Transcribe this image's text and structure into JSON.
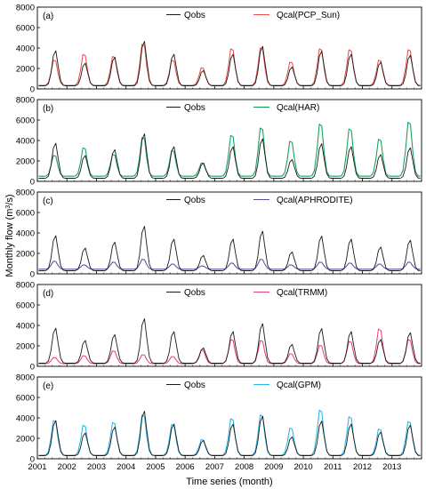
{
  "figure": {
    "xlabel": "Time series (month)",
    "ylabel_text": "Monthly flow (m",
    "ylabel_sup": "3",
    "ylabel_tail": "/s)",
    "x_years": [
      "2001",
      "2002",
      "2003",
      "2004",
      "2005",
      "2006",
      "2007",
      "2008",
      "2009",
      "2010",
      "2011",
      "2012",
      "2013"
    ],
    "y_ticks": [
      "0",
      "2000",
      "4000",
      "6000",
      "8000"
    ]
  },
  "chart_data": [
    {
      "type": "line",
      "panel": "(a)",
      "xlabel": "Time series (month)",
      "ylabel": "Monthly flow (m3/s)",
      "ylim": [
        0,
        8000
      ],
      "xlim": [
        "2001-01",
        "2014-01"
      ],
      "peaks": {
        "years": [
          2001,
          2002,
          2003,
          2004,
          2005,
          2006,
          2007,
          2008,
          2009,
          2010,
          2011,
          2012,
          2013
        ],
        "Qobs": [
          3850,
          2600,
          3200,
          4800,
          3500,
          1850,
          3500,
          4300,
          2200,
          3800,
          3500,
          2700,
          3400
        ],
        "Qcal": [
          3000,
          3600,
          3400,
          4700,
          3000,
          2200,
          4200,
          4300,
          2800,
          4200,
          4100,
          3000,
          4100
        ]
      },
      "series": [
        {
          "name": "Qobs",
          "color": "#1a1a1a",
          "base": 300
        },
        {
          "name": "Qcal(PCP_Sun)",
          "color": "#e8524a",
          "base": 350
        }
      ]
    },
    {
      "type": "line",
      "panel": "(b)",
      "xlabel": "Time series (month)",
      "ylabel": "Monthly flow (m3/s)",
      "ylim": [
        0,
        8000
      ],
      "xlim": [
        "2001-01",
        "2014-01"
      ],
      "peaks": {
        "years": [
          2001,
          2002,
          2003,
          2004,
          2005,
          2006,
          2007,
          2008,
          2009,
          2010,
          2011,
          2012,
          2013
        ],
        "Qobs": [
          3850,
          2600,
          3200,
          4800,
          3500,
          1850,
          3500,
          4300,
          2200,
          3800,
          3500,
          2700,
          3400
        ],
        "Qcal": [
          2700,
          3500,
          2800,
          4600,
          3200,
          1900,
          4800,
          5600,
          4200,
          6000,
          5500,
          4400,
          6200
        ]
      },
      "series": [
        {
          "name": "Qobs",
          "color": "#1a1a1a",
          "base": 300
        },
        {
          "name": "Qcal(HAR)",
          "color": "#11a05a",
          "base": 500
        }
      ]
    },
    {
      "type": "line",
      "panel": "(c)",
      "xlabel": "Time series (month)",
      "ylabel": "Monthly flow (m3/s)",
      "ylim": [
        0,
        8000
      ],
      "xlim": [
        "2001-01",
        "2014-01"
      ],
      "peaks": {
        "years": [
          2001,
          2002,
          2003,
          2004,
          2005,
          2006,
          2007,
          2008,
          2009,
          2010,
          2011,
          2012,
          2013
        ],
        "Qobs": [
          3850,
          2600,
          3200,
          4800,
          3500,
          1850,
          3500,
          4300,
          2200,
          3800,
          3500,
          2700,
          3400
        ],
        "Qcal": [
          1300,
          900,
          1200,
          1500,
          1000,
          800,
          1100,
          1500,
          900,
          1200,
          1100,
          1000,
          1200
        ]
      },
      "series": [
        {
          "name": "Qobs",
          "color": "#1a1a1a",
          "base": 300
        },
        {
          "name": "Qcal(APHRODITE)",
          "color": "#5a4fa0",
          "base": 450
        }
      ]
    },
    {
      "type": "line",
      "panel": "(d)",
      "xlabel": "Time series (month)",
      "ylabel": "Monthly flow (m3/s)",
      "ylim": [
        0,
        8000
      ],
      "xlim": [
        "2001-01",
        "2014-01"
      ],
      "peaks": {
        "years": [
          2001,
          2002,
          2003,
          2004,
          2005,
          2006,
          2007,
          2008,
          2009,
          2010,
          2011,
          2012,
          2013
        ],
        "Qobs": [
          3850,
          2600,
          3200,
          4800,
          3500,
          1850,
          3500,
          4300,
          2200,
          3800,
          3500,
          2700,
          3400
        ],
        "Qcal": [
          900,
          1100,
          1600,
          1200,
          1000,
          1700,
          2800,
          2700,
          1300,
          2200,
          2600,
          3900,
          2800
        ]
      },
      "series": [
        {
          "name": "Qobs",
          "color": "#1a1a1a",
          "base": 300
        },
        {
          "name": "Qcal(TRMM)",
          "color": "#e8437f",
          "base": 250
        }
      ]
    },
    {
      "type": "line",
      "panel": "(e)",
      "xlabel": "Time series (month)",
      "ylabel": "Monthly flow (m3/s)",
      "ylim": [
        0,
        8000
      ],
      "xlim": [
        "2001-01",
        "2014-01"
      ],
      "peaks": {
        "years": [
          2001,
          2002,
          2003,
          2004,
          2005,
          2006,
          2007,
          2008,
          2009,
          2010,
          2011,
          2012,
          2013
        ],
        "Qobs": [
          3850,
          2600,
          3200,
          4800,
          3500,
          1850,
          3500,
          4300,
          2200,
          3800,
          3500,
          2700,
          3400
        ],
        "Qcal": [
          4000,
          3500,
          3800,
          4600,
          3600,
          2000,
          4200,
          4600,
          3200,
          5100,
          4400,
          3100,
          3900
        ]
      },
      "series": [
        {
          "name": "Qobs",
          "color": "#1a1a1a",
          "base": 300
        },
        {
          "name": "Qcal(GPM)",
          "color": "#29b5e8",
          "base": 350
        }
      ]
    }
  ]
}
